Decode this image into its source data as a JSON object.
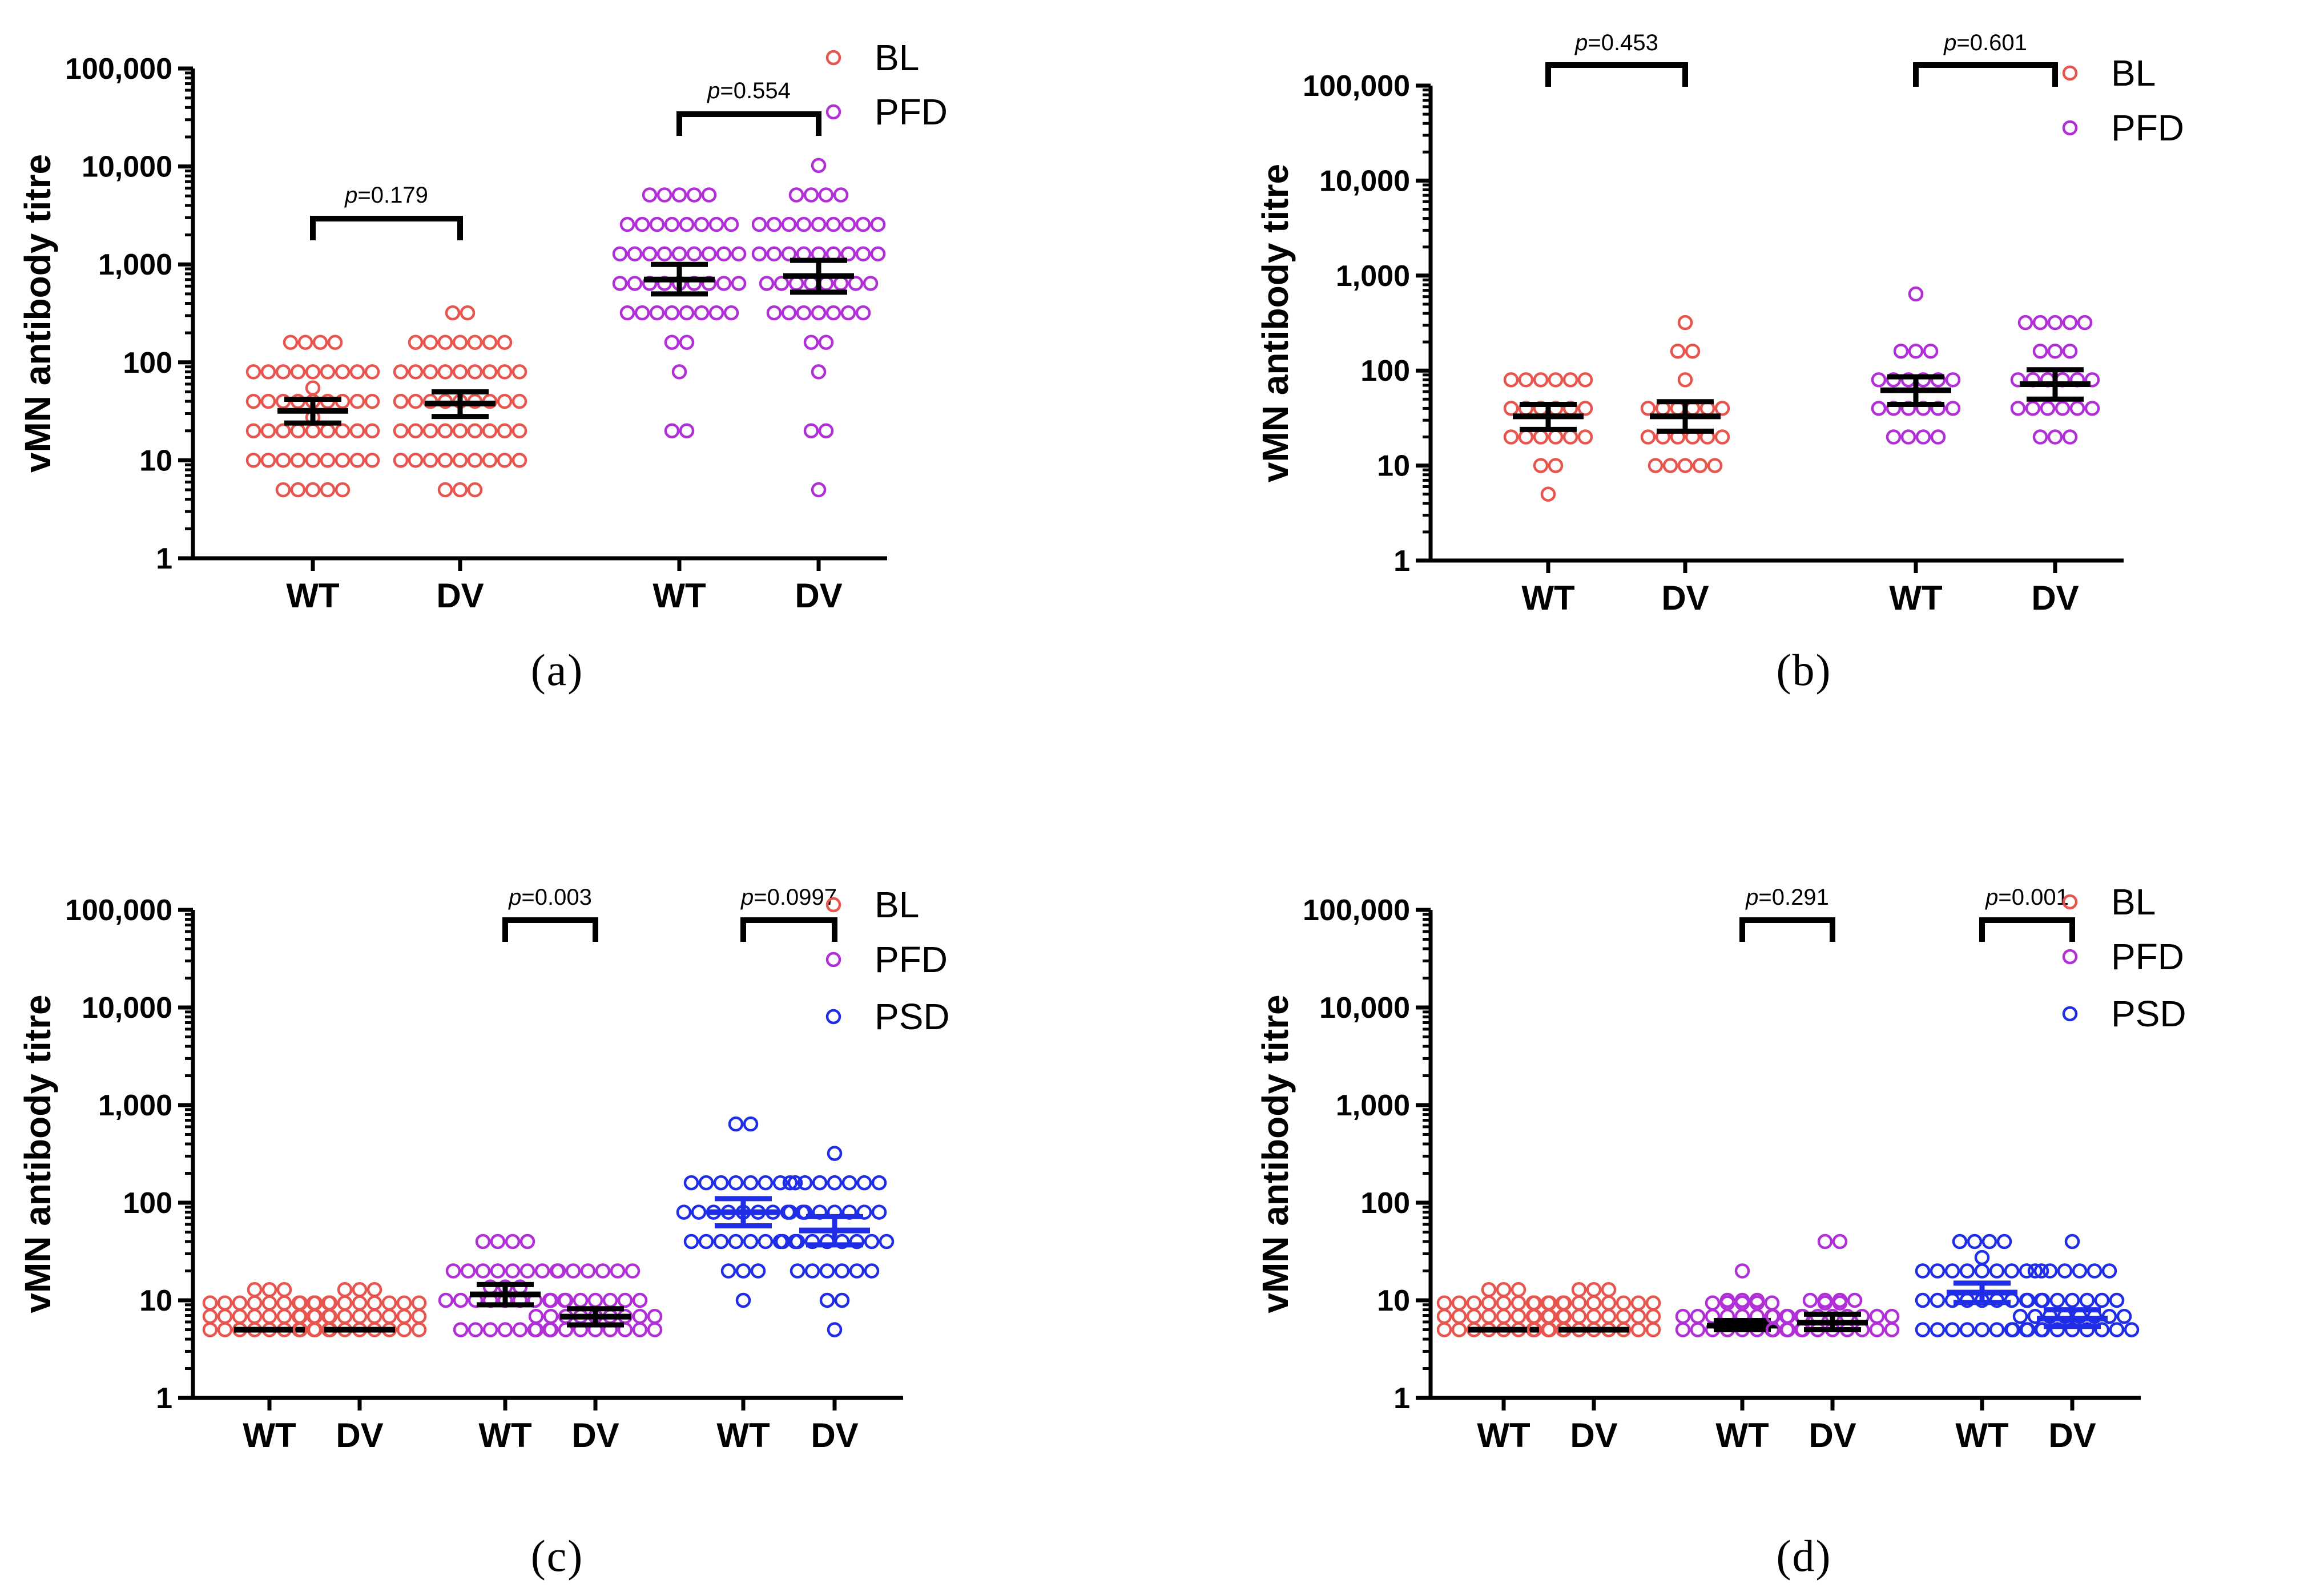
{
  "colors": {
    "BL": "#e8554e",
    "PFD": "#b12fd6",
    "PSD": "#1f2ee6",
    "axis": "#000000"
  },
  "chart_data": [
    {
      "type": "scatter",
      "panel_label": "(a)",
      "ylabel": "vMN antibody titre",
      "yscale": "log",
      "ylim": [
        1,
        100000
      ],
      "yticks": [
        1,
        10,
        100,
        1000,
        10000,
        100000
      ],
      "yticklabels": [
        "1",
        "10",
        "100",
        "1,000",
        "10,000",
        "100,000"
      ],
      "legend": [
        "BL",
        "PFD"
      ],
      "legend_position": "top-right",
      "groups": [
        {
          "label": "WT",
          "series": "BL",
          "mean": 32,
          "ci": [
            24,
            42
          ],
          "values": [
            5,
            5,
            5,
            5,
            5,
            10,
            10,
            10,
            10,
            10,
            10,
            10,
            10,
            10,
            20,
            20,
            20,
            20,
            20,
            20,
            20,
            20,
            20,
            20,
            40,
            40,
            40,
            40,
            40,
            40,
            40,
            40,
            40,
            40,
            80,
            80,
            80,
            80,
            80,
            80,
            80,
            80,
            80,
            160,
            160,
            160,
            160
          ]
        },
        {
          "label": "DV",
          "series": "BL",
          "mean": 38,
          "ci": [
            28,
            50
          ],
          "values": [
            5,
            5,
            5,
            10,
            10,
            10,
            10,
            10,
            10,
            10,
            10,
            10,
            20,
            20,
            20,
            20,
            20,
            20,
            20,
            20,
            20,
            40,
            40,
            40,
            40,
            40,
            40,
            40,
            40,
            40,
            80,
            80,
            80,
            80,
            80,
            80,
            80,
            80,
            80,
            160,
            160,
            160,
            160,
            160,
            160,
            160,
            320,
            320
          ]
        },
        {
          "label": "WT",
          "series": "PFD",
          "mean": 700,
          "ci": [
            500,
            1000
          ],
          "values": [
            20,
            20,
            80,
            160,
            160,
            320,
            320,
            320,
            320,
            320,
            320,
            320,
            320,
            640,
            640,
            640,
            640,
            640,
            640,
            640,
            640,
            640,
            1280,
            1280,
            1280,
            1280,
            1280,
            1280,
            1280,
            1280,
            1280,
            2560,
            2560,
            2560,
            2560,
            2560,
            2560,
            2560,
            2560,
            5120,
            5120,
            5120,
            5120,
            5120
          ]
        },
        {
          "label": "DV",
          "series": "PFD",
          "mean": 760,
          "ci": [
            520,
            1100
          ],
          "values": [
            5,
            20,
            20,
            80,
            160,
            160,
            320,
            320,
            320,
            320,
            320,
            320,
            320,
            640,
            640,
            640,
            640,
            640,
            640,
            640,
            640,
            1280,
            1280,
            1280,
            1280,
            1280,
            1280,
            1280,
            1280,
            1280,
            2560,
            2560,
            2560,
            2560,
            2560,
            2560,
            2560,
            2560,
            2560,
            5120,
            5120,
            5120,
            5120,
            10240
          ]
        }
      ],
      "comparisons": [
        {
          "groups": [
            0,
            1
          ],
          "p": "0.179"
        },
        {
          "groups": [
            2,
            3
          ],
          "p": "0.554"
        }
      ]
    },
    {
      "type": "scatter",
      "panel_label": "(b)",
      "ylabel": "vMN antibody titre",
      "yscale": "log",
      "ylim": [
        1,
        100000
      ],
      "yticks": [
        1,
        10,
        100,
        1000,
        10000,
        100000
      ],
      "yticklabels": [
        "1",
        "10",
        "100",
        "1,000",
        "10,000",
        "100,000"
      ],
      "legend": [
        "BL",
        "PFD"
      ],
      "legend_position": "top-right",
      "groups": [
        {
          "label": "WT",
          "series": "BL",
          "mean": 33,
          "ci": [
            24,
            44
          ],
          "values": [
            5,
            10,
            10,
            20,
            20,
            20,
            20,
            20,
            20,
            40,
            40,
            40,
            40,
            40,
            40,
            80,
            80,
            80,
            80,
            80,
            80
          ]
        },
        {
          "label": "DV",
          "series": "BL",
          "mean": 33,
          "ci": [
            23,
            47
          ],
          "values": [
            10,
            10,
            10,
            10,
            10,
            20,
            20,
            20,
            20,
            20,
            20,
            40,
            40,
            40,
            40,
            40,
            40,
            80,
            160,
            160,
            320
          ]
        },
        {
          "label": "WT",
          "series": "PFD",
          "mean": 62,
          "ci": [
            44,
            86
          ],
          "values": [
            20,
            20,
            20,
            20,
            40,
            40,
            40,
            40,
            40,
            40,
            80,
            80,
            80,
            80,
            80,
            80,
            160,
            160,
            160,
            640
          ]
        },
        {
          "label": "DV",
          "series": "PFD",
          "mean": 72,
          "ci": [
            50,
            102
          ],
          "values": [
            20,
            20,
            20,
            40,
            40,
            40,
            40,
            40,
            40,
            80,
            80,
            80,
            80,
            80,
            80,
            160,
            160,
            160,
            320,
            320,
            320,
            320,
            320
          ]
        }
      ],
      "comparisons": [
        {
          "groups": [
            0,
            1
          ],
          "p": "0.453"
        },
        {
          "groups": [
            2,
            3
          ],
          "p": "0.601"
        }
      ]
    },
    {
      "type": "scatter",
      "panel_label": "(c)",
      "ylabel": "vMN antibody titre",
      "yscale": "log",
      "ylim": [
        1,
        100000
      ],
      "yticks": [
        1,
        10,
        100,
        1000,
        10000,
        100000
      ],
      "yticklabels": [
        "1",
        "10",
        "100",
        "1,000",
        "10,000",
        "100,000"
      ],
      "legend": [
        "BL",
        "PFD",
        "PSD"
      ],
      "legend_position": "top-right",
      "groups": [
        {
          "label": "WT",
          "series": "BL",
          "mean": 5,
          "ci": [
            5,
            5
          ],
          "values": [
            5,
            5,
            5,
            5,
            5,
            5,
            5,
            5,
            5,
            5,
            5,
            5,
            5,
            5,
            5,
            5,
            5,
            5,
            5,
            5,
            5,
            5,
            5,
            5,
            5,
            5,
            5,
            5,
            5,
            5
          ]
        },
        {
          "label": "DV",
          "series": "BL",
          "mean": 5,
          "ci": [
            5,
            5
          ],
          "values": [
            5,
            5,
            5,
            5,
            5,
            5,
            5,
            5,
            5,
            5,
            5,
            5,
            5,
            5,
            5,
            5,
            5,
            5,
            5,
            5,
            5,
            5,
            5,
            5,
            5,
            5,
            5,
            5,
            5,
            5
          ]
        },
        {
          "label": "WT",
          "series": "PFD",
          "mean": 11.5,
          "ci": [
            9,
            14.5
          ],
          "values": [
            5,
            5,
            5,
            5,
            5,
            5,
            5,
            10,
            10,
            10,
            10,
            10,
            10,
            10,
            10,
            10,
            10,
            10,
            10,
            20,
            20,
            20,
            20,
            20,
            20,
            20,
            20,
            40,
            40,
            40,
            40
          ]
        },
        {
          "label": "DV",
          "series": "PFD",
          "mean": 6.8,
          "ci": [
            5.6,
            8.2
          ],
          "values": [
            5,
            5,
            5,
            5,
            5,
            5,
            5,
            5,
            5,
            5,
            5,
            5,
            5,
            5,
            5,
            5,
            5,
            5,
            10,
            10,
            10,
            10,
            10,
            10,
            10,
            20,
            20,
            20,
            20,
            20,
            20
          ]
        },
        {
          "label": "WT",
          "series": "PSD",
          "mean": 80,
          "ci": [
            58,
            110
          ],
          "values": [
            10,
            20,
            20,
            20,
            40,
            40,
            40,
            40,
            40,
            40,
            40,
            40,
            80,
            80,
            80,
            80,
            80,
            80,
            80,
            80,
            80,
            160,
            160,
            160,
            160,
            160,
            160,
            160,
            160,
            640,
            640
          ]
        },
        {
          "label": "DV",
          "series": "PSD",
          "mean": 52,
          "ci": [
            37,
            72
          ],
          "values": [
            5,
            10,
            10,
            20,
            20,
            20,
            20,
            20,
            20,
            40,
            40,
            40,
            40,
            40,
            40,
            40,
            40,
            80,
            80,
            80,
            80,
            80,
            80,
            80,
            160,
            160,
            160,
            160,
            160,
            160,
            160,
            320
          ]
        }
      ],
      "comparisons": [
        {
          "groups": [
            2,
            3
          ],
          "p": "0.003"
        },
        {
          "groups": [
            4,
            5
          ],
          "p": "0.0997"
        }
      ]
    },
    {
      "type": "scatter",
      "panel_label": "(d)",
      "ylabel": "vMN antibody titre",
      "yscale": "log",
      "ylim": [
        1,
        100000
      ],
      "yticks": [
        1,
        10,
        100,
        1000,
        10000,
        100000
      ],
      "yticklabels": [
        "1",
        "10",
        "100",
        "1,000",
        "10,000",
        "100,000"
      ],
      "legend": [
        "BL",
        "PFD",
        "PSD"
      ],
      "legend_position": "top-right",
      "groups": [
        {
          "label": "WT",
          "series": "BL",
          "mean": 5,
          "ci": [
            5,
            5
          ],
          "values": [
            5,
            5,
            5,
            5,
            5,
            5,
            5,
            5,
            5,
            5,
            5,
            5,
            5,
            5,
            5,
            5,
            5,
            5,
            5,
            5,
            5,
            5,
            5,
            5,
            5,
            5,
            5,
            5,
            5,
            5
          ]
        },
        {
          "label": "DV",
          "series": "BL",
          "mean": 5,
          "ci": [
            5,
            5
          ],
          "values": [
            5,
            5,
            5,
            5,
            5,
            5,
            5,
            5,
            5,
            5,
            5,
            5,
            5,
            5,
            5,
            5,
            5,
            5,
            5,
            5,
            5,
            5,
            5,
            5,
            5,
            5,
            5,
            5,
            5,
            5
          ]
        },
        {
          "label": "WT",
          "series": "PFD",
          "mean": 5.5,
          "ci": [
            5,
            6.2
          ],
          "values": [
            5,
            5,
            5,
            5,
            5,
            5,
            5,
            5,
            5,
            5,
            5,
            5,
            5,
            5,
            5,
            5,
            5,
            5,
            5,
            5,
            5,
            5,
            5,
            10,
            10,
            10,
            20
          ]
        },
        {
          "label": "DV",
          "series": "PFD",
          "mean": 5.9,
          "ci": [
            5,
            7.2
          ],
          "values": [
            5,
            5,
            5,
            5,
            5,
            5,
            5,
            5,
            5,
            5,
            5,
            5,
            5,
            5,
            5,
            5,
            5,
            5,
            5,
            5,
            10,
            10,
            10,
            10,
            40,
            40
          ]
        },
        {
          "label": "WT",
          "series": "PSD",
          "mean": 12,
          "ci": [
            9.5,
            15
          ],
          "values": [
            5,
            5,
            5,
            5,
            5,
            5,
            5,
            5,
            5,
            10,
            10,
            10,
            10,
            10,
            10,
            10,
            10,
            10,
            20,
            20,
            20,
            20,
            20,
            20,
            20,
            20,
            20,
            20,
            40,
            40,
            40,
            40
          ]
        },
        {
          "label": "DV",
          "series": "PSD",
          "mean": 6.5,
          "ci": [
            5.4,
            8
          ],
          "values": [
            5,
            5,
            5,
            5,
            5,
            5,
            5,
            5,
            5,
            5,
            5,
            5,
            5,
            5,
            5,
            5,
            5,
            10,
            10,
            10,
            10,
            10,
            10,
            10,
            20,
            20,
            20,
            20,
            20,
            20,
            40
          ]
        }
      ],
      "comparisons": [
        {
          "groups": [
            2,
            3
          ],
          "p": "0.291"
        },
        {
          "groups": [
            4,
            5
          ],
          "p": "0.001"
        }
      ]
    }
  ]
}
